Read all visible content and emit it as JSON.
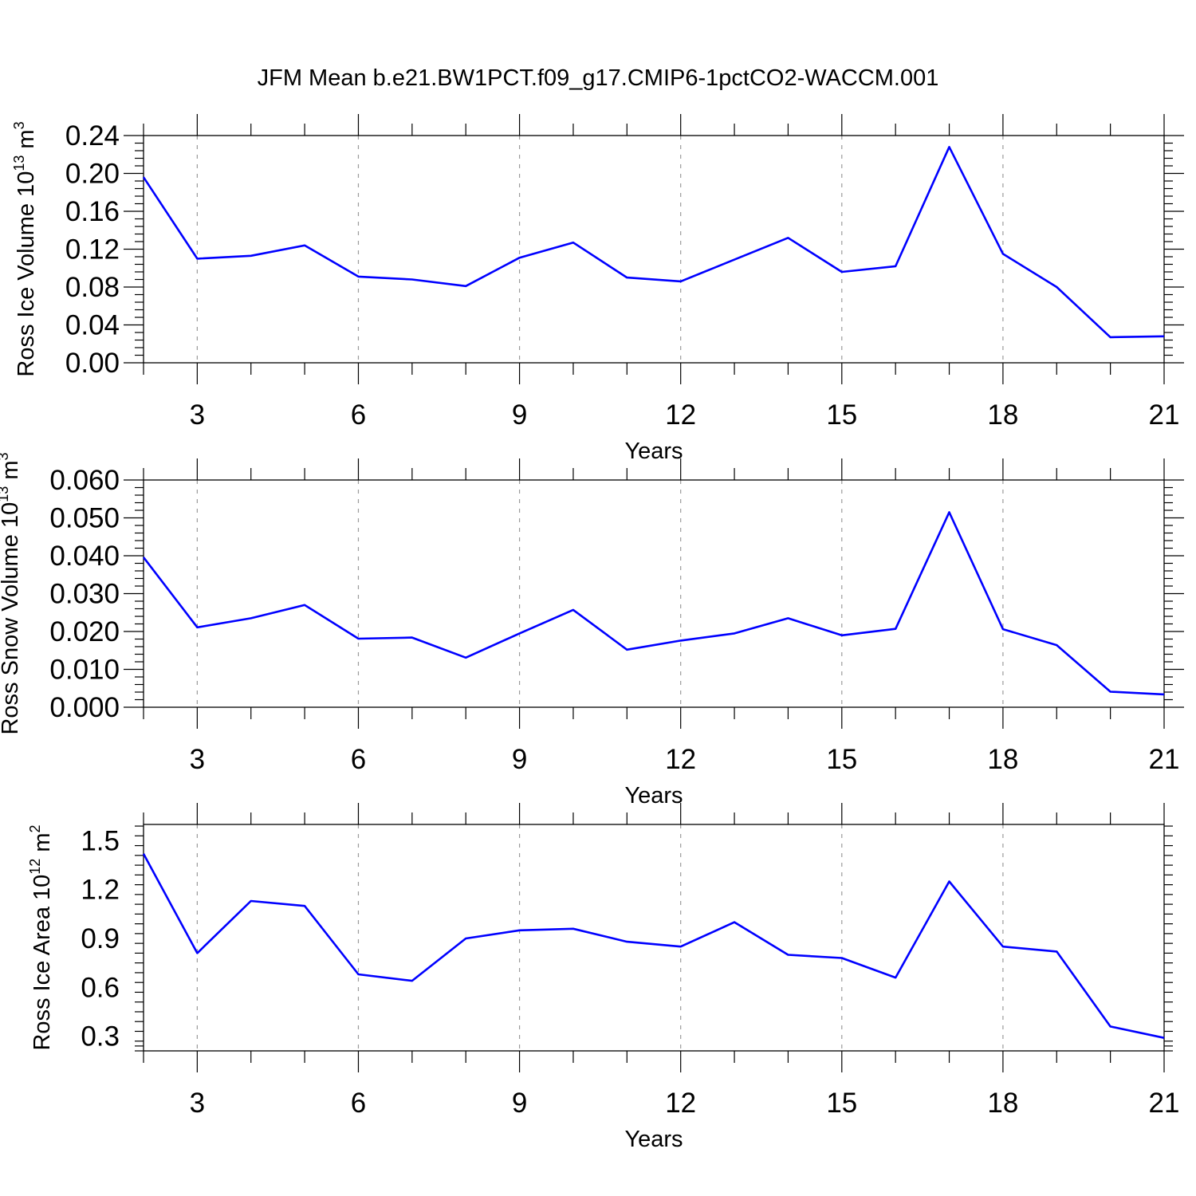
{
  "title": "JFM Mean b.e21.BW1PCT.f09_g17.CMIP6-1pctCO2-WACCM.001",
  "chart_data": [
    {
      "type": "line",
      "ylabel": {
        "text": "Ross Ice Volume 10",
        "exponent": "13",
        "unit": " m",
        "unit_exponent": "3"
      },
      "xlabel": "Years",
      "xlim": [
        2,
        21
      ],
      "ylim": [
        0,
        0.24
      ],
      "xticks": [
        3,
        6,
        9,
        12,
        15,
        18,
        21
      ],
      "xtick_labels": [
        "3",
        "6",
        "9",
        "12",
        "15",
        "18",
        "21"
      ],
      "yticks": [
        0,
        0.04,
        0.08,
        0.12,
        0.16,
        0.2,
        0.24
      ],
      "ytick_labels": [
        "0.00",
        "0.04",
        "0.08",
        "0.12",
        "0.16",
        "0.20",
        "0.24"
      ],
      "grid": "vertical dashed at major x ticks",
      "color": "#0000ff",
      "x": [
        2,
        3,
        4,
        5,
        6,
        7,
        8,
        9,
        10,
        11,
        12,
        13,
        14,
        15,
        16,
        17,
        18,
        19,
        20,
        21
      ],
      "y": [
        0.196,
        0.11,
        0.113,
        0.124,
        0.091,
        0.088,
        0.081,
        0.111,
        0.127,
        0.09,
        0.086,
        0.109,
        0.132,
        0.096,
        0.102,
        0.228,
        0.115,
        0.08,
        0.027,
        0.028
      ]
    },
    {
      "type": "line",
      "ylabel": {
        "text": "Ross Snow Volume 10",
        "exponent": "13",
        "unit": " m",
        "unit_exponent": "3"
      },
      "xlabel": "Years",
      "xlim": [
        2,
        21
      ],
      "ylim": [
        0,
        0.06
      ],
      "xticks": [
        3,
        6,
        9,
        12,
        15,
        18,
        21
      ],
      "xtick_labels": [
        "3",
        "6",
        "9",
        "12",
        "15",
        "18",
        "21"
      ],
      "yticks": [
        0,
        0.01,
        0.02,
        0.03,
        0.04,
        0.05,
        0.06
      ],
      "ytick_labels": [
        "0.000",
        "0.010",
        "0.020",
        "0.030",
        "0.040",
        "0.050",
        "0.060"
      ],
      "grid": "vertical dashed at major x ticks",
      "color": "#0000ff",
      "x": [
        2,
        3,
        4,
        5,
        6,
        7,
        8,
        9,
        10,
        11,
        12,
        13,
        14,
        15,
        16,
        17,
        18,
        19,
        20,
        21
      ],
      "y": [
        0.0396,
        0.0211,
        0.0235,
        0.027,
        0.0181,
        0.0184,
        0.0131,
        0.0195,
        0.0257,
        0.0152,
        0.0176,
        0.0195,
        0.0235,
        0.019,
        0.0207,
        0.0515,
        0.0206,
        0.0164,
        0.0041,
        0.0034
      ]
    },
    {
      "type": "line",
      "ylabel": {
        "text": "Ross Ice Area 10",
        "exponent": "12",
        "unit": " m",
        "unit_exponent": "2"
      },
      "xlabel": "Years",
      "xlim": [
        2,
        21
      ],
      "ylim": [
        0.21,
        1.6
      ],
      "xticks": [
        3,
        6,
        9,
        12,
        15,
        18,
        21
      ],
      "xtick_labels": [
        "3",
        "6",
        "9",
        "12",
        "15",
        "18",
        "21"
      ],
      "yticks": [
        0.3,
        0.6,
        0.9,
        1.2,
        1.5
      ],
      "ytick_labels": [
        "0.3",
        "0.6",
        "0.9",
        "1.2",
        "1.5"
      ],
      "grid": "vertical dashed at major x ticks",
      "color": "#0000ff",
      "x": [
        2,
        3,
        4,
        5,
        6,
        7,
        8,
        9,
        10,
        11,
        12,
        13,
        14,
        15,
        16,
        17,
        18,
        19,
        20,
        21
      ],
      "y": [
        1.42,
        0.81,
        1.13,
        1.1,
        0.68,
        0.64,
        0.9,
        0.95,
        0.96,
        0.88,
        0.85,
        1.0,
        0.8,
        0.78,
        0.66,
        1.25,
        0.85,
        0.82,
        0.36,
        0.29
      ]
    }
  ]
}
